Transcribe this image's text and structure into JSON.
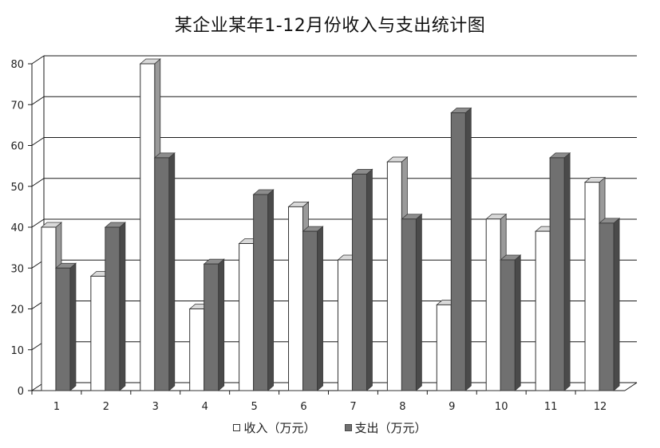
{
  "chart_data": {
    "type": "bar",
    "title": "某企业某年1-12月份收入与支出统计图",
    "categories": [
      "1",
      "2",
      "3",
      "4",
      "5",
      "6",
      "7",
      "8",
      "9",
      "10",
      "11",
      "12"
    ],
    "series": [
      {
        "name": "收入（万元）",
        "values": [
          40,
          28,
          80,
          20,
          36,
          45,
          32,
          56,
          21,
          42,
          39,
          51
        ],
        "color": "#ffffff"
      },
      {
        "name": "支出（万元）",
        "values": [
          30,
          40,
          57,
          31,
          48,
          39,
          53,
          42,
          68,
          32,
          57,
          41
        ],
        "color": "#707070"
      }
    ],
    "yticks": [
      "0",
      "10",
      "20",
      "30",
      "40",
      "50",
      "60",
      "70",
      "80"
    ],
    "ylim": [
      0,
      80
    ],
    "xlabel": "",
    "ylabel": "",
    "grid": true,
    "legend": "bottom"
  }
}
